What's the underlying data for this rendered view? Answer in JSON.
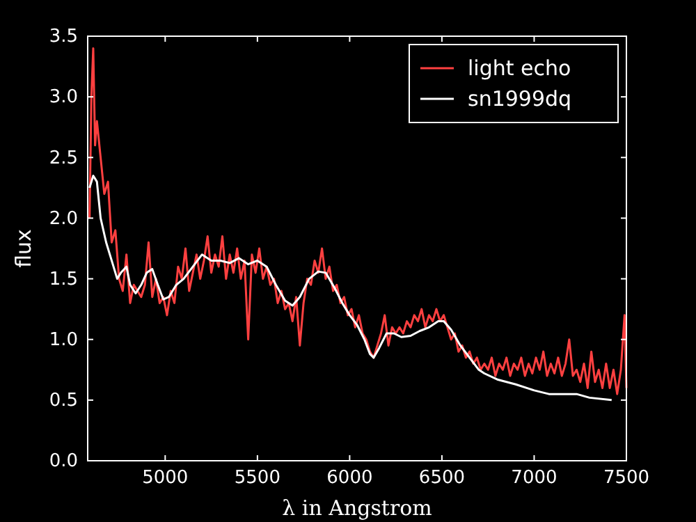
{
  "chart_data": {
    "type": "line",
    "xlabel": "λ in Angstrom",
    "ylabel": "flux",
    "xlim": [
      4580,
      7500
    ],
    "ylim": [
      0,
      3.5
    ],
    "xticks": [
      5000,
      5500,
      6000,
      6500,
      7000,
      7500
    ],
    "yticks": [
      {
        "value": 0,
        "label": "0.0"
      },
      {
        "value": 0.5,
        "label": "0.5"
      },
      {
        "value": 1,
        "label": "1.0"
      },
      {
        "value": 1.5,
        "label": "1.5"
      },
      {
        "value": 2,
        "label": "2.0"
      },
      {
        "value": 2.5,
        "label": "2.5"
      },
      {
        "value": 3,
        "label": "3.0"
      },
      {
        "value": 3.5,
        "label": "3.5"
      }
    ],
    "legend": "top right",
    "grid": false,
    "series": [
      {
        "name": "light echo",
        "color": "#ff4040",
        "x": [
          4590,
          4600,
          4610,
          4620,
          4630,
          4650,
          4670,
          4690,
          4710,
          4730,
          4750,
          4770,
          4790,
          4810,
          4830,
          4850,
          4870,
          4890,
          4910,
          4930,
          4950,
          4970,
          4990,
          5010,
          5030,
          5050,
          5070,
          5090,
          5110,
          5130,
          5150,
          5170,
          5190,
          5210,
          5230,
          5250,
          5270,
          5290,
          5310,
          5330,
          5350,
          5370,
          5390,
          5410,
          5430,
          5450,
          5470,
          5490,
          5510,
          5530,
          5550,
          5570,
          5590,
          5610,
          5630,
          5650,
          5670,
          5690,
          5710,
          5730,
          5750,
          5770,
          5790,
          5810,
          5830,
          5850,
          5870,
          5890,
          5910,
          5930,
          5950,
          5970,
          5990,
          6010,
          6030,
          6050,
          6070,
          6090,
          6110,
          6130,
          6150,
          6170,
          6190,
          6210,
          6230,
          6250,
          6270,
          6290,
          6310,
          6330,
          6350,
          6370,
          6390,
          6410,
          6430,
          6450,
          6470,
          6490,
          6510,
          6530,
          6550,
          6570,
          6590,
          6610,
          6630,
          6650,
          6670,
          6690,
          6710,
          6730,
          6750,
          6770,
          6790,
          6810,
          6830,
          6850,
          6870,
          6890,
          6910,
          6930,
          6950,
          6970,
          6990,
          7010,
          7030,
          7050,
          7070,
          7090,
          7110,
          7130,
          7150,
          7170,
          7190,
          7210,
          7230,
          7250,
          7270,
          7290,
          7310,
          7330,
          7350,
          7370,
          7390,
          7410,
          7430,
          7450,
          7470,
          7490,
          7500
        ],
        "values": [
          2.0,
          3.0,
          3.4,
          2.6,
          2.8,
          2.5,
          2.2,
          2.3,
          1.8,
          1.9,
          1.5,
          1.4,
          1.7,
          1.3,
          1.45,
          1.4,
          1.35,
          1.45,
          1.8,
          1.35,
          1.5,
          1.3,
          1.35,
          1.2,
          1.4,
          1.3,
          1.6,
          1.5,
          1.75,
          1.4,
          1.55,
          1.7,
          1.5,
          1.65,
          1.85,
          1.55,
          1.7,
          1.6,
          1.85,
          1.5,
          1.7,
          1.55,
          1.75,
          1.5,
          1.65,
          1.0,
          1.7,
          1.55,
          1.75,
          1.5,
          1.6,
          1.45,
          1.5,
          1.3,
          1.4,
          1.25,
          1.3,
          1.15,
          1.35,
          0.95,
          1.3,
          1.5,
          1.45,
          1.65,
          1.55,
          1.75,
          1.5,
          1.6,
          1.4,
          1.45,
          1.3,
          1.35,
          1.2,
          1.25,
          1.1,
          1.2,
          1.05,
          1.0,
          0.9,
          0.85,
          0.95,
          1.05,
          1.2,
          0.95,
          1.1,
          1.05,
          1.1,
          1.05,
          1.15,
          1.1,
          1.2,
          1.15,
          1.25,
          1.1,
          1.2,
          1.15,
          1.25,
          1.15,
          1.2,
          1.1,
          1.0,
          1.05,
          0.9,
          0.95,
          0.85,
          0.9,
          0.8,
          0.85,
          0.75,
          0.8,
          0.75,
          0.85,
          0.7,
          0.8,
          0.75,
          0.85,
          0.7,
          0.8,
          0.75,
          0.85,
          0.7,
          0.8,
          0.72,
          0.85,
          0.75,
          0.9,
          0.7,
          0.8,
          0.72,
          0.85,
          0.7,
          0.8,
          1.0,
          0.7,
          0.75,
          0.65,
          0.8,
          0.6,
          0.9,
          0.65,
          0.75,
          0.6,
          0.8,
          0.6,
          0.75,
          0.55,
          0.75,
          1.2,
          0.6
        ]
      },
      {
        "name": "sn1999dq",
        "color": "#ffffff",
        "x": [
          4590,
          4610,
          4630,
          4650,
          4680,
          4710,
          4740,
          4760,
          4790,
          4810,
          4840,
          4870,
          4900,
          4930,
          4960,
          4990,
          5020,
          5060,
          5100,
          5150,
          5200,
          5250,
          5300,
          5350,
          5400,
          5450,
          5500,
          5550,
          5600,
          5650,
          5690,
          5730,
          5780,
          5830,
          5870,
          5920,
          5960,
          6000,
          6040,
          6080,
          6110,
          6130,
          6160,
          6200,
          6240,
          6280,
          6330,
          6380,
          6430,
          6480,
          6510,
          6550,
          6600,
          6650,
          6700,
          6730,
          6800,
          6900,
          7000,
          7080,
          7150,
          7230,
          7300,
          7420
        ],
        "values": [
          2.25,
          2.35,
          2.3,
          2.0,
          1.8,
          1.65,
          1.5,
          1.55,
          1.6,
          1.45,
          1.38,
          1.45,
          1.55,
          1.58,
          1.45,
          1.33,
          1.35,
          1.45,
          1.5,
          1.6,
          1.7,
          1.65,
          1.65,
          1.63,
          1.67,
          1.62,
          1.65,
          1.6,
          1.45,
          1.32,
          1.28,
          1.35,
          1.5,
          1.56,
          1.55,
          1.42,
          1.3,
          1.2,
          1.12,
          1.0,
          0.88,
          0.85,
          0.93,
          1.05,
          1.05,
          1.02,
          1.03,
          1.07,
          1.1,
          1.15,
          1.15,
          1.08,
          0.95,
          0.85,
          0.75,
          0.72,
          0.67,
          0.63,
          0.58,
          0.55,
          0.55,
          0.55,
          0.52,
          0.5
        ]
      }
    ]
  }
}
